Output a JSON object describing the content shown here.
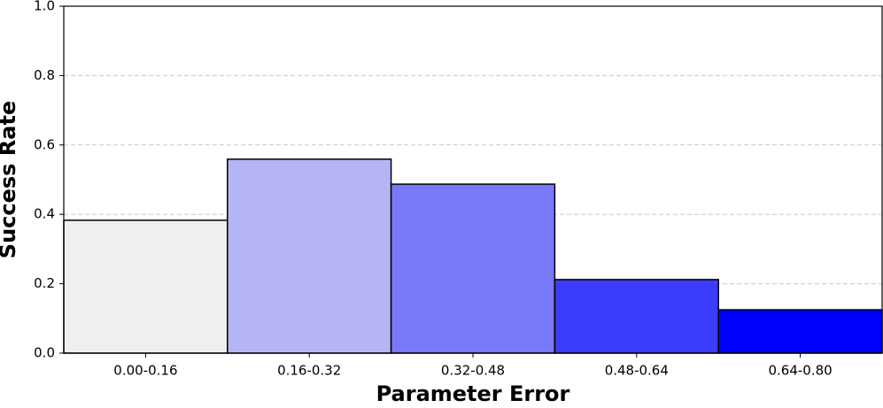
{
  "chart_data": {
    "type": "bar",
    "x_label": "Parameter Error",
    "y_label": "Success Rate",
    "categories": [
      "0.00-0.16",
      "0.16-0.32",
      "0.32-0.48",
      "0.48-0.64",
      "0.64-0.80"
    ],
    "values": [
      0.383,
      0.559,
      0.487,
      0.212,
      0.125
    ],
    "colors": [
      "#efeff2",
      "#b5b5f5",
      "#7878f8",
      "#3c3cfb",
      "#0000fe"
    ],
    "ylim": [
      0,
      1
    ],
    "yticks": [
      {
        "value": 0,
        "label": "0.0"
      },
      {
        "value": 0.2,
        "label": "0.2"
      },
      {
        "value": 0.4,
        "label": "0.4"
      },
      {
        "value": 0.6,
        "label": "0.6"
      },
      {
        "value": 0.8,
        "label": "0.8"
      },
      {
        "value": 1,
        "label": "1.0"
      }
    ],
    "grid": true
  }
}
